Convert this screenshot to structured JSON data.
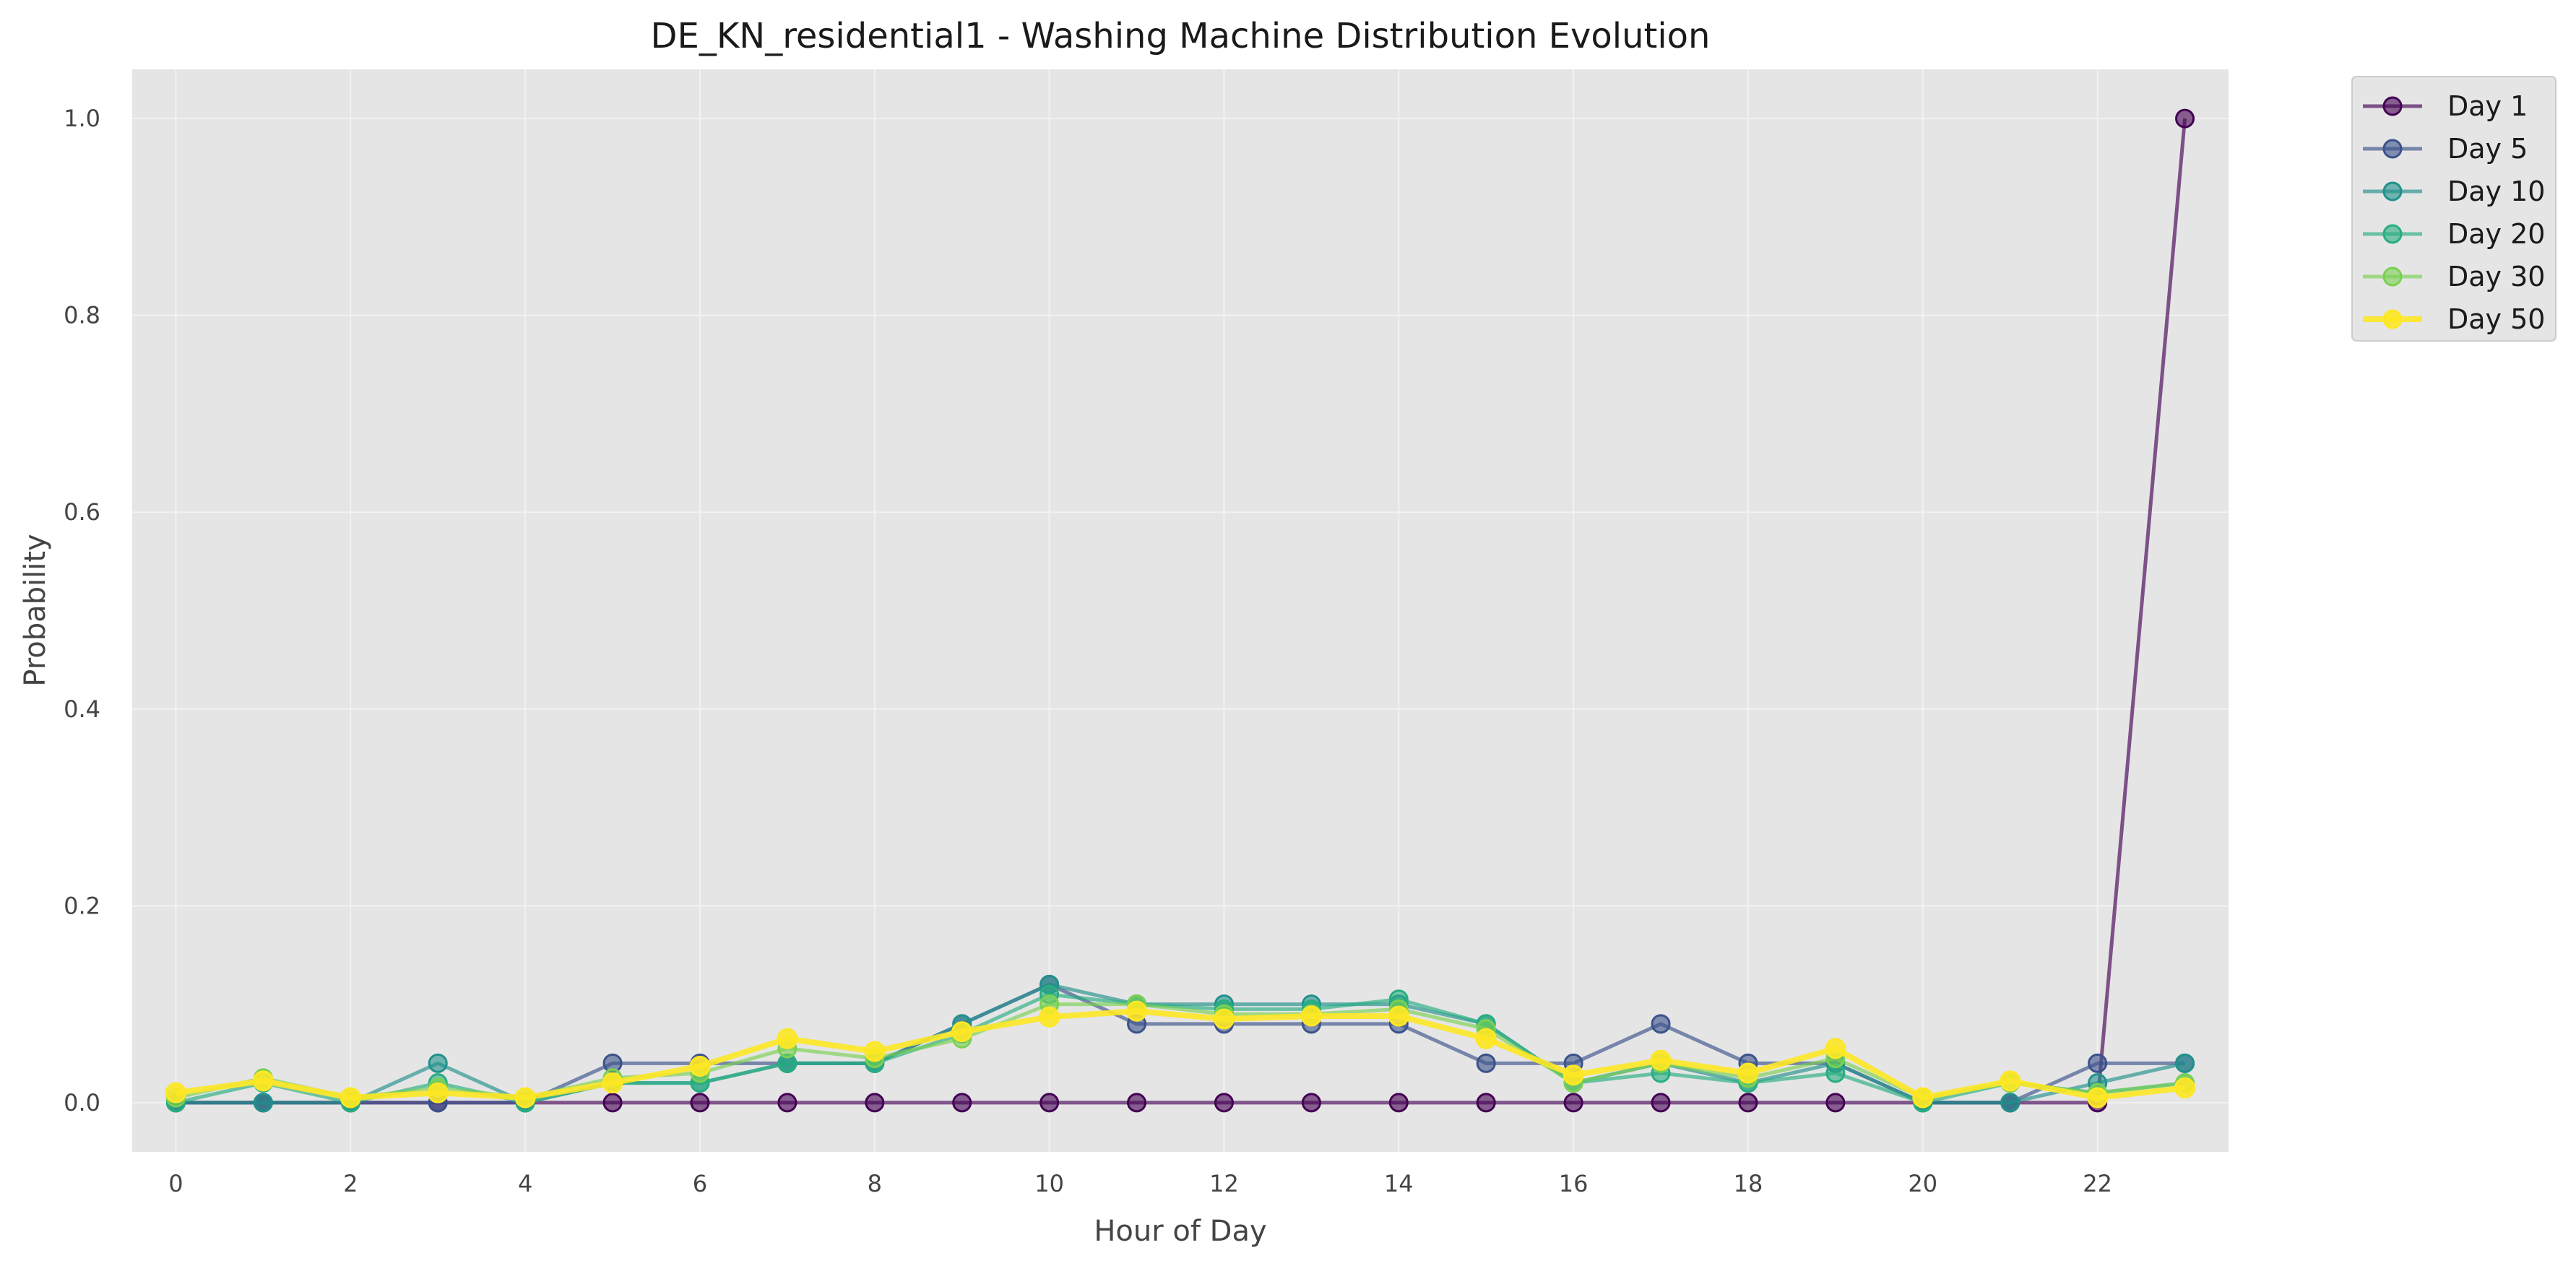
{
  "chart_data": {
    "type": "line",
    "title": "DE_KN_residential1 - Washing Machine Distribution Evolution",
    "xlabel": "Hour of Day",
    "ylabel": "Probability",
    "xlim": [
      -0.5,
      23.5
    ],
    "ylim": [
      -0.05,
      1.05
    ],
    "x_ticks": [
      0,
      2,
      4,
      6,
      8,
      10,
      12,
      14,
      16,
      18,
      20,
      22
    ],
    "y_ticks": [
      0.0,
      0.2,
      0.4,
      0.6,
      0.8,
      1.0
    ],
    "x_tick_labels": [
      "0",
      "2",
      "4",
      "6",
      "8",
      "10",
      "12",
      "14",
      "16",
      "18",
      "20",
      "22"
    ],
    "y_tick_labels": [
      "0.0",
      "0.2",
      "0.4",
      "0.6",
      "0.8",
      "1.0"
    ],
    "grid": true,
    "legend_position": "outside-top-right",
    "x": [
      0,
      1,
      2,
      3,
      4,
      5,
      6,
      7,
      8,
      9,
      10,
      11,
      12,
      13,
      14,
      15,
      16,
      17,
      18,
      19,
      20,
      21,
      22,
      23
    ],
    "series": [
      {
        "name": "Day 1",
        "color": "#440154",
        "values": [
          0,
          0,
          0,
          0,
          0,
          0,
          0,
          0,
          0,
          0,
          0,
          0,
          0,
          0,
          0,
          0,
          0,
          0,
          0,
          0,
          0,
          0,
          0,
          1.0
        ]
      },
      {
        "name": "Day 5",
        "color": "#3b528b",
        "values": [
          0,
          0,
          0,
          0,
          0,
          0.04,
          0.04,
          0.04,
          0.04,
          0.08,
          0.12,
          0.08,
          0.08,
          0.08,
          0.08,
          0.04,
          0.04,
          0.08,
          0.04,
          0.04,
          0,
          0,
          0.04,
          0.04
        ]
      },
      {
        "name": "Day 10",
        "color": "#21918c",
        "values": [
          0,
          0,
          0,
          0.04,
          0,
          0.02,
          0.02,
          0.04,
          0.04,
          0.08,
          0.12,
          0.1,
          0.1,
          0.1,
          0.1,
          0.08,
          0.02,
          0.04,
          0.02,
          0.04,
          0,
          0,
          0.02,
          0.04
        ]
      },
      {
        "name": "Day 20",
        "color": "#27ad81",
        "values": [
          0,
          0.02,
          0,
          0.02,
          0,
          0.02,
          0.02,
          0.04,
          0.04,
          0.07,
          0.11,
          0.1,
          0.095,
          0.095,
          0.105,
          0.08,
          0.02,
          0.03,
          0.02,
          0.03,
          0,
          0.02,
          0.01,
          0.02
        ]
      },
      {
        "name": "Day 30",
        "color": "#7ad151",
        "values": [
          0.005,
          0.025,
          0.005,
          0.015,
          0.005,
          0.025,
          0.03,
          0.055,
          0.045,
          0.065,
          0.1,
          0.1,
          0.09,
          0.09,
          0.095,
          0.075,
          0.02,
          0.04,
          0.025,
          0.045,
          0.005,
          0.02,
          0.01,
          0.02
        ]
      },
      {
        "name": "Day 50",
        "color": "#fde725",
        "values": [
          0.01,
          0.022,
          0.005,
          0.01,
          0.005,
          0.02,
          0.037,
          0.065,
          0.052,
          0.072,
          0.087,
          0.093,
          0.085,
          0.088,
          0.088,
          0.065,
          0.028,
          0.043,
          0.03,
          0.055,
          0.005,
          0.022,
          0.005,
          0.015
        ]
      }
    ]
  }
}
